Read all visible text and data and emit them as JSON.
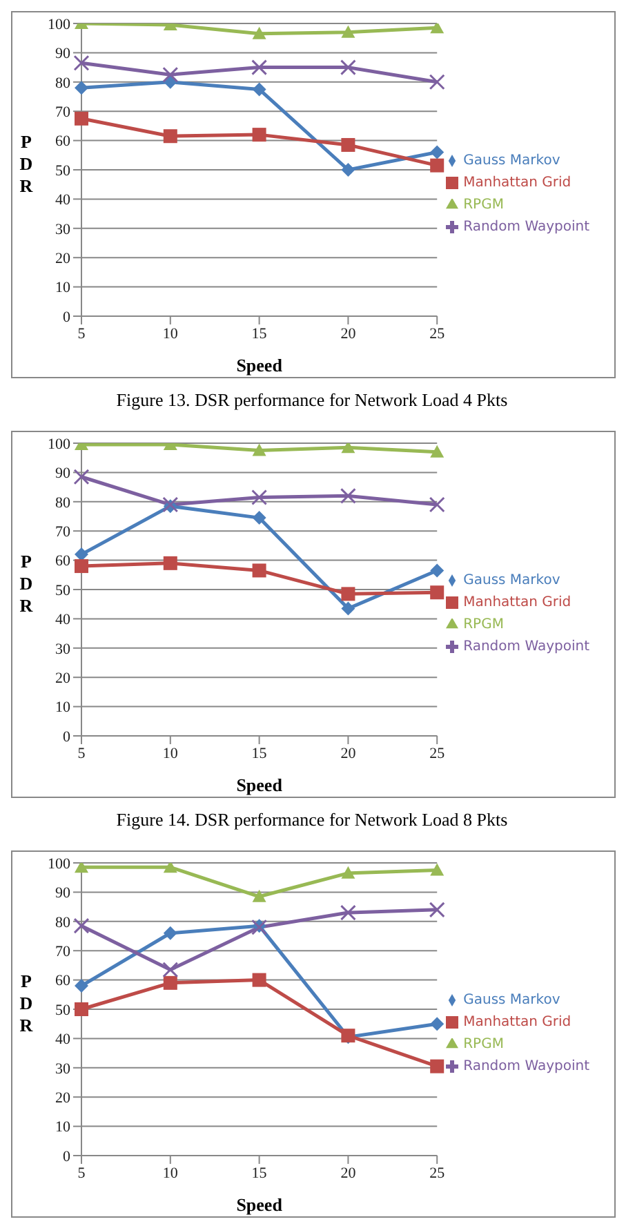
{
  "chart_data": [
    {
      "type": "line",
      "xlabel": "Speed",
      "ylabel": "PDR",
      "categories": [
        "5",
        "10",
        "15",
        "20",
        "25"
      ],
      "ylim": [
        0,
        100
      ],
      "yticks": [
        0,
        10,
        20,
        30,
        40,
        50,
        60,
        70,
        80,
        90,
        100
      ],
      "grid": "y",
      "legend": "right",
      "annotations": [
        "Figure 13. DSR performance for Network Load 4 Pkts"
      ],
      "series": [
        {
          "name": "Gauss Markov",
          "color": "#4a7ebb",
          "marker": "diamond",
          "values": [
            78,
            80,
            77.5,
            50,
            56
          ]
        },
        {
          "name": "Manhattan Grid",
          "color": "#be4b48",
          "marker": "square",
          "values": [
            67.5,
            61.5,
            62,
            58.5,
            51.5
          ]
        },
        {
          "name": "RPGM",
          "color": "#98b954",
          "marker": "triangle",
          "values": [
            100,
            99.5,
            96.5,
            97,
            98.5
          ]
        },
        {
          "name": "Random Waypoint",
          "color": "#7d60a0",
          "marker": "cross",
          "values": [
            86.5,
            82.5,
            85,
            85,
            80
          ]
        }
      ]
    },
    {
      "type": "line",
      "xlabel": "Speed",
      "ylabel": "PDR",
      "categories": [
        "5",
        "10",
        "15",
        "20",
        "25"
      ],
      "ylim": [
        0,
        100
      ],
      "yticks": [
        0,
        10,
        20,
        30,
        40,
        50,
        60,
        70,
        80,
        90,
        100
      ],
      "grid": "y",
      "legend": "right",
      "annotations": [
        "Figure 14. DSR performance for Network Load 8 Pkts"
      ],
      "series": [
        {
          "name": "Gauss Markov",
          "color": "#4a7ebb",
          "marker": "diamond",
          "values": [
            62,
            78.5,
            74.5,
            43.5,
            56.5
          ]
        },
        {
          "name": "Manhattan Grid",
          "color": "#be4b48",
          "marker": "square",
          "values": [
            58,
            59,
            56.5,
            48.5,
            49
          ]
        },
        {
          "name": "RPGM",
          "color": "#98b954",
          "marker": "triangle",
          "values": [
            99.5,
            99.5,
            97.5,
            98.5,
            97
          ]
        },
        {
          "name": "Random Waypoint",
          "color": "#7d60a0",
          "marker": "cross",
          "values": [
            88.5,
            79,
            81.5,
            82,
            79
          ]
        }
      ]
    },
    {
      "type": "line",
      "xlabel": "Speed",
      "ylabel": "PDR",
      "categories": [
        "5",
        "10",
        "15",
        "20",
        "25"
      ],
      "ylim": [
        0,
        100
      ],
      "yticks": [
        0,
        10,
        20,
        30,
        40,
        50,
        60,
        70,
        80,
        90,
        100
      ],
      "grid": "y",
      "legend": "right",
      "series": [
        {
          "name": "Gauss Markov",
          "color": "#4a7ebb",
          "marker": "diamond",
          "values": [
            58,
            76,
            78.5,
            40.5,
            45
          ]
        },
        {
          "name": "Manhattan Grid",
          "color": "#be4b48",
          "marker": "square",
          "values": [
            50,
            59,
            60,
            41,
            30.5
          ]
        },
        {
          "name": "RPGM",
          "color": "#98b954",
          "marker": "triangle",
          "values": [
            98.5,
            98.5,
            88.5,
            96.5,
            97.5
          ]
        },
        {
          "name": "Random Waypoint",
          "color": "#7d60a0",
          "marker": "cross",
          "values": [
            78.5,
            63.5,
            78,
            83,
            84
          ]
        }
      ]
    }
  ]
}
